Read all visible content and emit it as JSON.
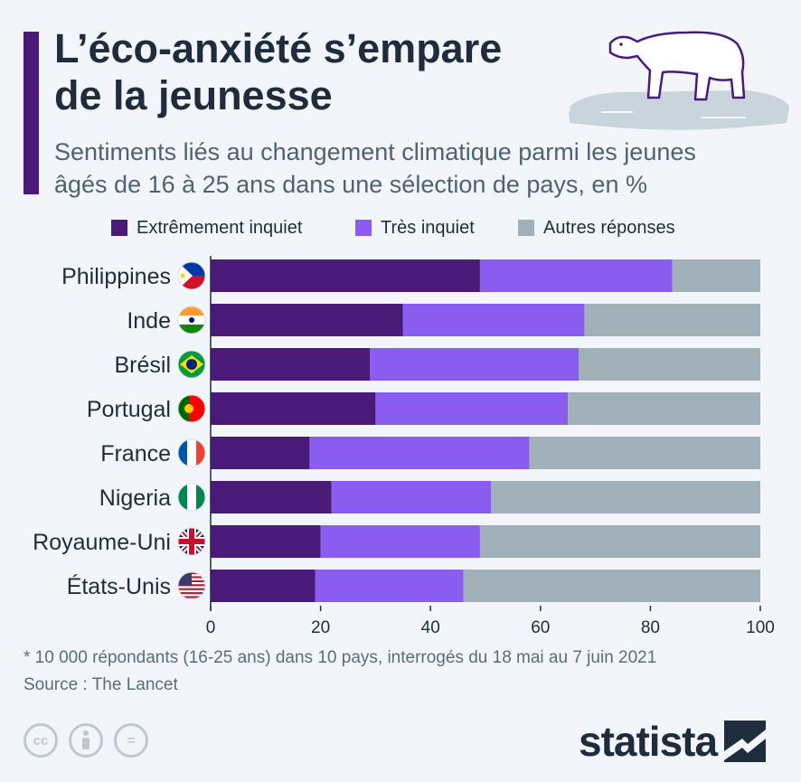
{
  "header": {
    "title_line1": "L’éco-anxiété s’empare",
    "title_line2": "de la jeunesse",
    "subtitle_line1": "Sentiments liés au changement climatique parmi les jeunes",
    "subtitle_line2": "âgés de 16 à 25 ans dans une sélection de pays, en %"
  },
  "chart_data": {
    "type": "bar",
    "orientation": "horizontal",
    "stacked": true,
    "categories": [
      "Philippines",
      "Inde",
      "Brésil",
      "Portugal",
      "France",
      "Nigeria",
      "Royaume-Uni",
      "États-Unis"
    ],
    "series": [
      {
        "name": "Extrêmement inquiet",
        "color": "#4a1a78",
        "values": [
          49,
          35,
          29,
          30,
          18,
          22,
          20,
          19
        ]
      },
      {
        "name": "Très inquiet",
        "color": "#8b5cf0",
        "values": [
          35,
          33,
          38,
          35,
          40,
          29,
          29,
          27
        ]
      },
      {
        "name": "Autres réponses",
        "color": "#a2b1b9",
        "values": [
          16,
          32,
          33,
          35,
          42,
          49,
          51,
          54
        ]
      }
    ],
    "xlim": [
      0,
      100
    ],
    "xticks": [
      0,
      20,
      40,
      60,
      80,
      100
    ],
    "legend": "top",
    "grid": false,
    "flags": [
      "philippines-flag-icon",
      "india-flag-icon",
      "brazil-flag-icon",
      "portugal-flag-icon",
      "france-flag-icon",
      "nigeria-flag-icon",
      "uk-flag-icon",
      "usa-flag-icon"
    ]
  },
  "footer": {
    "note": "* 10 000 répondants (16-25 ans) dans 10 pays, interrogés du 18 mai au 7 juin 2021",
    "source": "Source : The Lancet",
    "logo": "statista",
    "icons": [
      "cc-icon",
      "by-icon",
      "nd-icon"
    ],
    "cc_labels": [
      "cc",
      "=",
      ""
    ]
  }
}
